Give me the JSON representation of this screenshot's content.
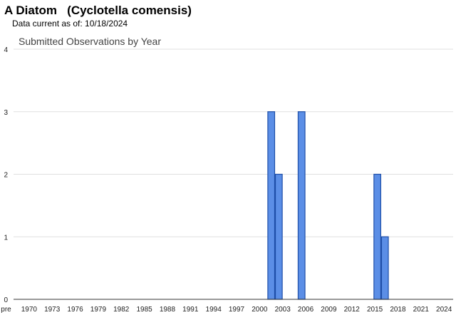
{
  "header": {
    "title": "A Diatom   (Cyclotella comensis)",
    "subtitle": "Data current as of: 10/18/2024"
  },
  "colors": {
    "bar_fill": "#5b8ee6",
    "bar_stroke": "#1f4fa8",
    "grid": "#e0e0e0",
    "axis": "#333333"
  },
  "chart_data": {
    "type": "bar",
    "title": "Submitted Observations by Year",
    "xlabel": "",
    "ylabel": "",
    "ylim": [
      0,
      4
    ],
    "y_ticks": [
      0,
      1,
      2,
      3,
      4
    ],
    "grid": true,
    "legend": "none",
    "x_range": [
      1967,
      2025
    ],
    "x_tick_labels": [
      "pre",
      "1970",
      "1973",
      "1976",
      "1979",
      "1982",
      "1985",
      "1988",
      "1991",
      "1994",
      "1997",
      "2000",
      "2003",
      "2006",
      "2009",
      "2012",
      "2015",
      "2018",
      "2021",
      "2024"
    ],
    "categories": [
      "2001",
      "2002",
      "2005",
      "2015",
      "2016"
    ],
    "values": [
      3,
      2,
      3,
      2,
      1
    ]
  }
}
